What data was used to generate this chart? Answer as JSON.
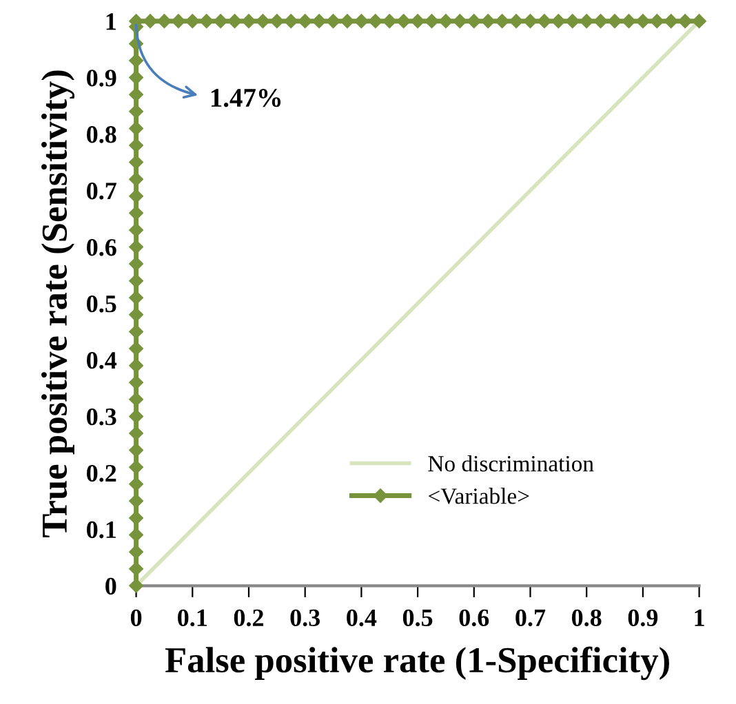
{
  "chart_data": {
    "type": "line",
    "xlabel": "False positive rate (1-Specificity)",
    "ylabel": "True positive rate (Sensitivity)",
    "xlim": [
      0,
      1
    ],
    "ylim": [
      0,
      1
    ],
    "xticks": [
      0,
      0.1,
      0.2,
      0.3,
      0.4,
      0.5,
      0.6,
      0.7,
      0.8,
      0.9,
      1
    ],
    "yticks": [
      0,
      0.1,
      0.2,
      0.3,
      0.4,
      0.5,
      0.6,
      0.7,
      0.8,
      0.9,
      1
    ],
    "grid": false,
    "legend": "bottom right",
    "series": [
      {
        "name": "No discrimination",
        "color": "#d7e4bd",
        "x": [
          0,
          1
        ],
        "values": [
          0,
          1
        ]
      },
      {
        "name": "<Variable>",
        "color": "#77933c",
        "marker": "diamond",
        "x": [
          0,
          0,
          0,
          0,
          0,
          0,
          0,
          0,
          0,
          0,
          0,
          0,
          0,
          0,
          0,
          0,
          0,
          0,
          0,
          0,
          0,
          0,
          0,
          0,
          0,
          0,
          0,
          0,
          0,
          0,
          0,
          0,
          0,
          0,
          0,
          0.025,
          0.05,
          0.075,
          0.1,
          0.125,
          0.15,
          0.175,
          0.2,
          0.225,
          0.25,
          0.275,
          0.3,
          0.325,
          0.35,
          0.375,
          0.4,
          0.425,
          0.45,
          0.475,
          0.5,
          0.525,
          0.55,
          0.575,
          0.6,
          0.625,
          0.65,
          0.675,
          0.7,
          0.725,
          0.75,
          0.775,
          0.8,
          0.825,
          0.85,
          0.875,
          0.9,
          0.925,
          0.95,
          0.975,
          1
        ],
        "values": [
          0,
          0.03,
          0.06,
          0.09,
          0.12,
          0.15,
          0.18,
          0.21,
          0.24,
          0.27,
          0.3,
          0.33,
          0.36,
          0.39,
          0.42,
          0.45,
          0.48,
          0.51,
          0.54,
          0.57,
          0.6,
          0.63,
          0.66,
          0.69,
          0.72,
          0.75,
          0.78,
          0.81,
          0.84,
          0.87,
          0.9,
          0.93,
          0.96,
          0.99,
          1,
          1,
          1,
          1,
          1,
          1,
          1,
          1,
          1,
          1,
          1,
          1,
          1,
          1,
          1,
          1,
          1,
          1,
          1,
          1,
          1,
          1,
          1,
          1,
          1,
          1,
          1,
          1,
          1,
          1,
          1,
          1,
          1,
          1,
          1,
          1,
          1,
          1,
          1,
          1,
          1
        ]
      }
    ],
    "annotations": [
      {
        "text": "1.47%",
        "x": 0,
        "y": 1
      }
    ]
  }
}
